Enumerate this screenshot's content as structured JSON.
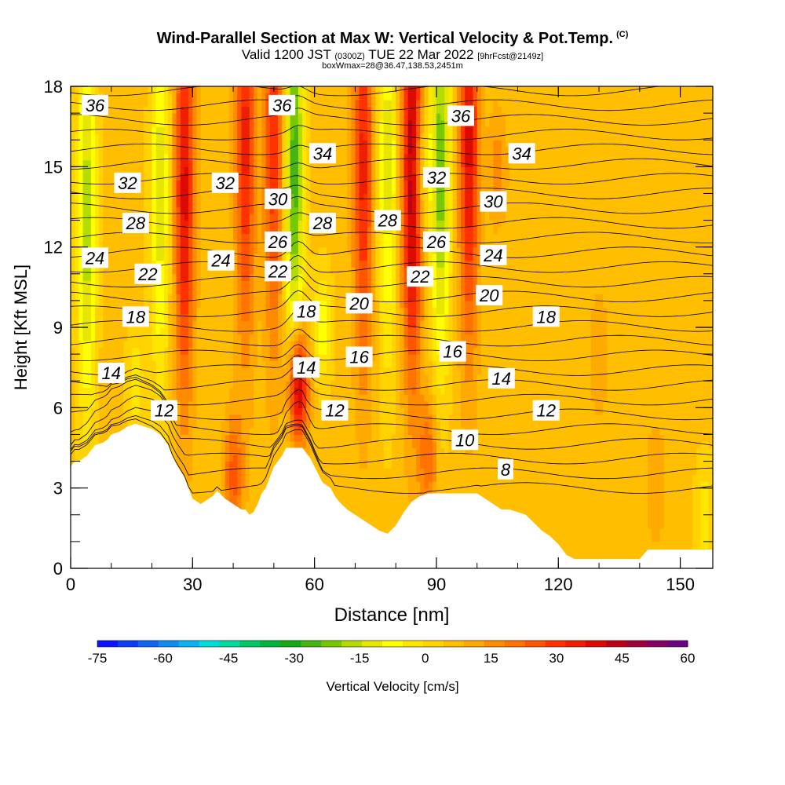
{
  "title": {
    "main": "Wind-Parallel Section at Max W: Vertical Velocity & Pot.Temp.",
    "copyright": "(C)",
    "valid": "Valid 1200 JST",
    "valid_utc": "(0300Z)",
    "valid_date": "TUE 22 Mar 2022",
    "forecast": "[9hrFcst@2149z]",
    "box": "boxWmax=28@36.47,138.53,2451m"
  },
  "chart_data": {
    "type": "heatmap",
    "xlabel": "Distance [nm]",
    "ylabel": "Height [Kft MSL]",
    "xlim": [
      0,
      158
    ],
    "ylim": [
      0,
      18
    ],
    "x_ticks": [
      0,
      30,
      60,
      90,
      120,
      150
    ],
    "y_ticks": [
      0,
      3,
      6,
      9,
      12,
      15,
      18
    ],
    "grid": false,
    "colorbar": {
      "label": "Vertical Velocity [cm/s]",
      "ticks": [
        -75,
        -60,
        -45,
        -30,
        -15,
        0,
        15,
        30,
        45,
        60
      ],
      "min": -75,
      "max": 60,
      "step": 5,
      "colors": [
        "#0a14ff",
        "#0b3cf5",
        "#0f64f0",
        "#0f8cf0",
        "#0ab4f0",
        "#00dcdc",
        "#00dca0",
        "#00c864",
        "#00b43c",
        "#14aa14",
        "#46b414",
        "#78c800",
        "#b4dc00",
        "#e6e600",
        "#ffff00",
        "#ffe600",
        "#ffd200",
        "#ffbe00",
        "#ffaa00",
        "#ff8c00",
        "#ff7300",
        "#ff5500",
        "#ff3200",
        "#f01e00",
        "#dc0a00",
        "#be0014",
        "#a0003c",
        "#870064",
        "#6e0082"
      ]
    },
    "terrain_profile": {
      "x": [
        0,
        1,
        2,
        4,
        5,
        6,
        8,
        9,
        10,
        12,
        13,
        14,
        16,
        18,
        20,
        22,
        24,
        25,
        26,
        28,
        29,
        30,
        32,
        33,
        35,
        36,
        38,
        40,
        42,
        43,
        44,
        45,
        46,
        47,
        48,
        49,
        50,
        52,
        53,
        54,
        56,
        57,
        58,
        59,
        60,
        61,
        62,
        64,
        65,
        66,
        68,
        70,
        72,
        74,
        76,
        78,
        80,
        82,
        84,
        86,
        88,
        90,
        92,
        94,
        96,
        98,
        100,
        102,
        104,
        106,
        108,
        110,
        112,
        114,
        116,
        118,
        120,
        122,
        124,
        126,
        128,
        130,
        132,
        134,
        136,
        138,
        140,
        142,
        144,
        146,
        148,
        150,
        152,
        154,
        156,
        158
      ],
      "height": [
        3.8,
        4.0,
        4.0,
        4.2,
        4.4,
        4.6,
        4.7,
        4.8,
        5.0,
        5.1,
        5.2,
        5.3,
        5.4,
        5.3,
        5.2,
        5.0,
        4.6,
        4.2,
        3.9,
        3.4,
        3.0,
        2.6,
        2.4,
        2.5,
        2.7,
        2.9,
        2.6,
        2.4,
        2.2,
        2.2,
        2.0,
        2.1,
        2.4,
        2.8,
        3.0,
        3.4,
        3.8,
        4.2,
        4.5,
        4.5,
        4.5,
        4.5,
        4.3,
        4.1,
        3.8,
        3.5,
        3.2,
        3.0,
        2.7,
        2.5,
        2.2,
        2.0,
        1.8,
        1.6,
        1.4,
        1.3,
        1.6,
        2.1,
        2.5,
        2.7,
        2.8,
        2.8,
        2.8,
        2.8,
        2.8,
        2.8,
        2.8,
        2.6,
        2.4,
        2.2,
        2.2,
        2.1,
        2.0,
        1.7,
        1.4,
        1.2,
        0.9,
        0.5,
        0.35,
        0.35,
        0.35,
        0.35,
        0.35,
        0.35,
        0.35,
        0.35,
        0.35,
        0.7,
        0.7,
        0.7,
        0.7,
        0.7,
        0.7,
        0.7,
        0.7,
        0.7
      ]
    },
    "vertical_velocity_features": [
      {
        "x": 4,
        "center_height": 13,
        "value": -25
      },
      {
        "x": 16,
        "center_height": 7,
        "value": -10
      },
      {
        "x": 22,
        "center_height": 14,
        "value": -20
      },
      {
        "x": 28,
        "center_height": 14,
        "value": 35
      },
      {
        "x": 43,
        "center_height": 16,
        "value": 30
      },
      {
        "x": 50,
        "center_height": 16,
        "value": 28
      },
      {
        "x": 55,
        "center_height": 15,
        "value": -35
      },
      {
        "x": 56,
        "center_height": 6.8,
        "value": 45
      },
      {
        "x": 62,
        "center_height": 9,
        "value": -15
      },
      {
        "x": 72,
        "center_height": 15,
        "value": 30
      },
      {
        "x": 78,
        "center_height": 15,
        "value": -20
      },
      {
        "x": 84,
        "center_height": 15,
        "value": 45
      },
      {
        "x": 86,
        "center_height": 15,
        "value": -15
      },
      {
        "x": 91,
        "center_height": 15,
        "value": -30
      },
      {
        "x": 98,
        "center_height": 16,
        "value": 35
      },
      {
        "x": 105,
        "center_height": 15,
        "value": 10
      },
      {
        "x": 40,
        "center_height": 3.5,
        "value": 20
      },
      {
        "x": 88,
        "center_height": 4.2,
        "value": 18
      },
      {
        "x": 144,
        "center_height": 3.2,
        "value": 8
      },
      {
        "x": 156,
        "center_height": 2.0,
        "value": -10
      },
      {
        "x": 130,
        "center_height": 8,
        "value": 8
      }
    ],
    "theta_contours": {
      "levels": [
        8,
        9,
        10,
        11,
        12,
        13,
        14,
        15,
        16,
        17,
        18,
        19,
        20,
        21,
        22,
        23,
        24,
        25,
        26,
        27,
        28,
        29,
        30,
        31,
        32,
        33,
        34,
        35,
        36,
        37
      ],
      "labels": [
        {
          "text": "36",
          "x": 6,
          "y": 17.3
        },
        {
          "text": "36",
          "x": 52,
          "y": 17.3
        },
        {
          "text": "36",
          "x": 96,
          "y": 16.9
        },
        {
          "text": "34",
          "x": 62,
          "y": 15.5
        },
        {
          "text": "34",
          "x": 111,
          "y": 15.5
        },
        {
          "text": "32",
          "x": 14,
          "y": 14.4
        },
        {
          "text": "32",
          "x": 38,
          "y": 14.4
        },
        {
          "text": "32",
          "x": 90,
          "y": 14.6
        },
        {
          "text": "30",
          "x": 51,
          "y": 13.8
        },
        {
          "text": "30",
          "x": 104,
          "y": 13.7
        },
        {
          "text": "28",
          "x": 16,
          "y": 12.9
        },
        {
          "text": "28",
          "x": 62,
          "y": 12.9
        },
        {
          "text": "28",
          "x": 78,
          "y": 13.0
        },
        {
          "text": "26",
          "x": 51,
          "y": 12.2
        },
        {
          "text": "26",
          "x": 90,
          "y": 12.2
        },
        {
          "text": "24",
          "x": 6,
          "y": 11.6
        },
        {
          "text": "24",
          "x": 37,
          "y": 11.5
        },
        {
          "text": "24",
          "x": 104,
          "y": 11.7
        },
        {
          "text": "22",
          "x": 19,
          "y": 11.0
        },
        {
          "text": "22",
          "x": 51,
          "y": 11.1
        },
        {
          "text": "22",
          "x": 86,
          "y": 10.9
        },
        {
          "text": "20",
          "x": 71,
          "y": 9.9
        },
        {
          "text": "20",
          "x": 103,
          "y": 10.2
        },
        {
          "text": "18",
          "x": 16,
          "y": 9.4
        },
        {
          "text": "18",
          "x": 58,
          "y": 9.6
        },
        {
          "text": "18",
          "x": 117,
          "y": 9.4
        },
        {
          "text": "16",
          "x": 71,
          "y": 7.9
        },
        {
          "text": "16",
          "x": 94,
          "y": 8.1
        },
        {
          "text": "14",
          "x": 10,
          "y": 7.3
        },
        {
          "text": "14",
          "x": 58,
          "y": 7.5
        },
        {
          "text": "14",
          "x": 106,
          "y": 7.1
        },
        {
          "text": "12",
          "x": 23,
          "y": 5.9
        },
        {
          "text": "12",
          "x": 65,
          "y": 5.9
        },
        {
          "text": "12",
          "x": 117,
          "y": 5.9
        },
        {
          "text": "10",
          "x": 97,
          "y": 4.8
        },
        {
          "text": "8",
          "x": 107,
          "y": 3.7
        }
      ]
    }
  }
}
